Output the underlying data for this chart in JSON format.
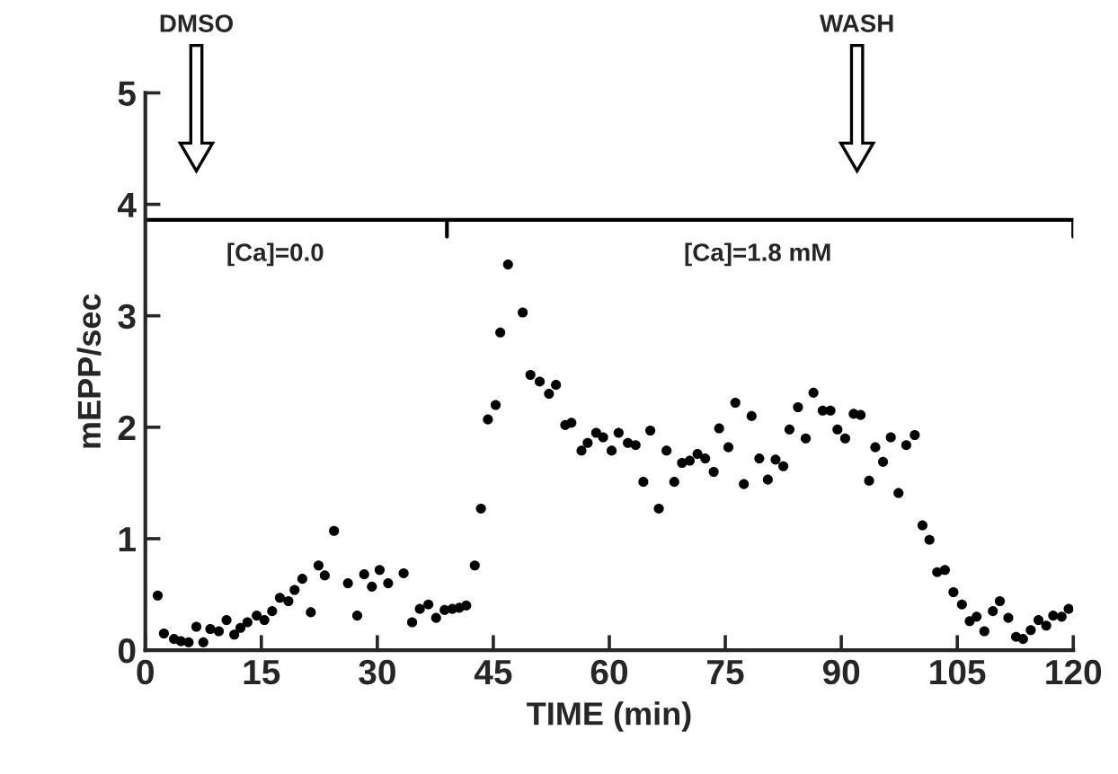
{
  "chart_data": {
    "type": "scatter",
    "xlabel": "TIME (min)",
    "ylabel": "mEPP/sec",
    "xlim": [
      0,
      120
    ],
    "ylim": [
      0,
      5
    ],
    "xticks": [
      0,
      15,
      30,
      45,
      60,
      75,
      90,
      105,
      120
    ],
    "yticks": [
      0,
      1,
      2,
      3,
      4,
      5
    ],
    "grid": false,
    "legend": false,
    "marker": "circle",
    "annotations": [
      "DMSO",
      "WASH",
      "[Ca]=0.0",
      "[Ca]=1.8 mM"
    ],
    "ref_lines": [
      {
        "axis": "y",
        "value": 3.86,
        "color": "#000000"
      }
    ],
    "series": [
      {
        "color": "#000000",
        "x": [
          1.6,
          2.4,
          3.7,
          4.6,
          5.6,
          6.6,
          7.5,
          8.4,
          9.5,
          10.5,
          11.5,
          12.3,
          13.2,
          14.4,
          15.4,
          16.4,
          17.4,
          18.5,
          19.3,
          20.3,
          21.4,
          22.4,
          23.2,
          24.4,
          26.2,
          27.4,
          28.3,
          29.3,
          30.3,
          31.4,
          33.4,
          34.5,
          35.5,
          36.6,
          37.6,
          38.7,
          39.7,
          40.6,
          41.5,
          42.6,
          43.4,
          44.3,
          45.3,
          45.9,
          46.9,
          48.8,
          49.8,
          51.0,
          52.2,
          53.1,
          54.3,
          55.1,
          56.4,
          57.2,
          58.3,
          59.2,
          60.3,
          61.2,
          62.4,
          63.4,
          64.4,
          65.3,
          66.4,
          67.4,
          68.4,
          69.4,
          70.4,
          71.4,
          72.4,
          73.5,
          74.2,
          75.4,
          76.3,
          77.4,
          78.4,
          79.4,
          80.5,
          81.5,
          82.5,
          83.3,
          84.4,
          85.4,
          86.4,
          87.6,
          88.6,
          89.5,
          90.5,
          91.6,
          92.5,
          93.6,
          94.4,
          95.4,
          96.4,
          97.4,
          98.4,
          99.5,
          100.5,
          101.4,
          102.4,
          103.4,
          104.5,
          105.6,
          106.6,
          107.5,
          108.5,
          109.6,
          110.5,
          111.6,
          112.6,
          113.5,
          114.5,
          115.5,
          116.5,
          117.4,
          118.5,
          119.4
        ],
        "values": [
          0.49,
          0.15,
          0.1,
          0.08,
          0.07,
          0.21,
          0.07,
          0.19,
          0.17,
          0.27,
          0.14,
          0.2,
          0.25,
          0.31,
          0.27,
          0.35,
          0.47,
          0.44,
          0.54,
          0.64,
          0.34,
          0.76,
          0.67,
          1.07,
          0.6,
          0.31,
          0.68,
          0.57,
          0.72,
          0.6,
          0.69,
          0.25,
          0.37,
          0.41,
          0.29,
          0.36,
          0.37,
          0.38,
          0.4,
          0.76,
          1.27,
          2.07,
          2.2,
          2.85,
          3.46,
          3.03,
          2.47,
          2.41,
          2.3,
          2.38,
          2.02,
          2.04,
          1.79,
          1.86,
          1.95,
          1.91,
          1.79,
          1.95,
          1.86,
          1.84,
          1.51,
          1.97,
          1.27,
          1.79,
          1.51,
          1.68,
          1.7,
          1.76,
          1.72,
          1.6,
          1.99,
          1.82,
          2.22,
          1.49,
          2.1,
          1.72,
          1.53,
          1.71,
          1.65,
          1.98,
          2.18,
          1.9,
          2.31,
          2.15,
          2.15,
          1.98,
          1.9,
          2.12,
          2.11,
          1.52,
          1.82,
          1.69,
          1.91,
          1.41,
          1.84,
          1.93,
          1.12,
          0.99,
          0.7,
          0.72,
          0.52,
          0.41,
          0.26,
          0.3,
          0.17,
          0.35,
          0.44,
          0.29,
          0.12,
          0.1,
          0.18,
          0.27,
          0.22,
          0.31,
          0.3,
          0.37
        ]
      }
    ]
  }
}
